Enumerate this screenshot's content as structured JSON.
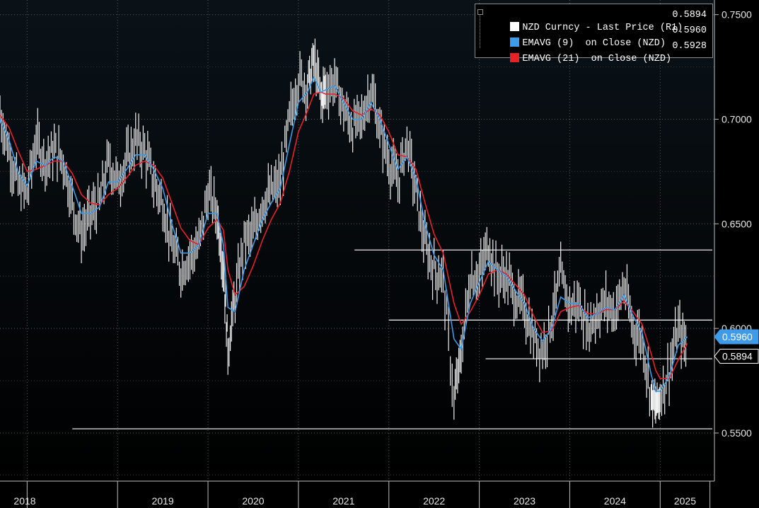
{
  "legend": {
    "items": [
      {
        "label": "NZD Curncy - Last Price (R1)",
        "value": "0.5894",
        "color": "#ffffff"
      },
      {
        "label": "EMAVG (9)  on Close (NZD)",
        "value": "0.5960",
        "color": "#3f9ae8"
      },
      {
        "label": "EMAVG (21)  on Close (NZD)",
        "value": "0.5928",
        "color": "#e8202a"
      }
    ]
  },
  "chart_data": {
    "type": "line",
    "title": "",
    "xlabel": "",
    "ylabel": "",
    "x_ticks": [
      "2018",
      "2019",
      "2020",
      "2021",
      "2022",
      "2023",
      "2024",
      "2025"
    ],
    "y_ticks": [
      "0.7500",
      "0.7000",
      "0.6500",
      "0.6000",
      "0.5500"
    ],
    "ylim": [
      0.527,
      0.757
    ],
    "xlim": [
      2017.7,
      2025.6
    ],
    "grid": true,
    "last_labels": [
      {
        "text": "0.5960",
        "color": "#3f9ae8"
      },
      {
        "text": "0.5894",
        "color": "#ffffff"
      }
    ],
    "horizontal_lines": [
      {
        "y": 0.6375,
        "x_start": 2021.62,
        "x_end": 2025.6
      },
      {
        "y": 0.604,
        "x_start": 2022.0,
        "x_end": 2025.6
      },
      {
        "y": 0.5855,
        "x_start": 2023.07,
        "x_end": 2025.6
      },
      {
        "y": 0.552,
        "x_start": 2018.5,
        "x_end": 2025.6
      }
    ],
    "series": [
      {
        "name": "NZD Curncy - Last Price (R1)",
        "color": "#ffffff",
        "x": [
          2017.7,
          2017.8,
          2017.9,
          2018.0,
          2018.1,
          2018.2,
          2018.3,
          2018.4,
          2018.5,
          2018.6,
          2018.7,
          2018.8,
          2018.9,
          2019.0,
          2019.1,
          2019.2,
          2019.3,
          2019.4,
          2019.5,
          2019.6,
          2019.7,
          2019.8,
          2019.9,
          2020.0,
          2020.1,
          2020.17,
          2020.22,
          2020.3,
          2020.4,
          2020.5,
          2020.6,
          2020.7,
          2020.8,
          2020.9,
          2021.0,
          2021.1,
          2021.17,
          2021.25,
          2021.3,
          2021.4,
          2021.5,
          2021.6,
          2021.7,
          2021.8,
          2021.9,
          2022.0,
          2022.1,
          2022.2,
          2022.3,
          2022.4,
          2022.5,
          2022.6,
          2022.72,
          2022.8,
          2022.9,
          2023.0,
          2023.1,
          2023.2,
          2023.3,
          2023.4,
          2023.5,
          2023.6,
          2023.7,
          2023.8,
          2023.9,
          2024.0,
          2024.1,
          2024.2,
          2024.3,
          2024.4,
          2024.5,
          2024.6,
          2024.7,
          2024.8,
          2024.9,
          2024.95,
          2025.0,
          2025.1,
          2025.2,
          2025.3
        ],
        "y": [
          0.703,
          0.685,
          0.668,
          0.665,
          0.69,
          0.68,
          0.685,
          0.68,
          0.66,
          0.645,
          0.655,
          0.66,
          0.68,
          0.67,
          0.68,
          0.69,
          0.685,
          0.67,
          0.66,
          0.64,
          0.628,
          0.635,
          0.64,
          0.665,
          0.655,
          0.63,
          0.59,
          0.615,
          0.642,
          0.645,
          0.66,
          0.665,
          0.67,
          0.7,
          0.72,
          0.716,
          0.728,
          0.71,
          0.715,
          0.718,
          0.705,
          0.696,
          0.7,
          0.715,
          0.695,
          0.68,
          0.67,
          0.69,
          0.665,
          0.64,
          0.628,
          0.625,
          0.565,
          0.588,
          0.625,
          0.625,
          0.64,
          0.625,
          0.625,
          0.615,
          0.61,
          0.595,
          0.59,
          0.605,
          0.625,
          0.61,
          0.612,
          0.6,
          0.608,
          0.612,
          0.608,
          0.62,
          0.6,
          0.595,
          0.568,
          0.562,
          0.568,
          0.58,
          0.6,
          0.5894
        ]
      },
      {
        "name": "EMAVG (9)  on Close (NZD)",
        "color": "#3f9ae8",
        "x": [
          2017.7,
          2017.8,
          2017.9,
          2018.0,
          2018.1,
          2018.2,
          2018.3,
          2018.4,
          2018.5,
          2018.6,
          2018.7,
          2018.8,
          2018.9,
          2019.0,
          2019.1,
          2019.2,
          2019.3,
          2019.4,
          2019.5,
          2019.6,
          2019.7,
          2019.8,
          2019.9,
          2020.0,
          2020.1,
          2020.17,
          2020.22,
          2020.3,
          2020.4,
          2020.5,
          2020.6,
          2020.7,
          2020.8,
          2020.9,
          2021.0,
          2021.1,
          2021.17,
          2021.25,
          2021.3,
          2021.4,
          2021.5,
          2021.6,
          2021.7,
          2021.8,
          2021.9,
          2022.0,
          2022.1,
          2022.2,
          2022.3,
          2022.4,
          2022.5,
          2022.6,
          2022.72,
          2022.8,
          2022.9,
          2023.0,
          2023.1,
          2023.2,
          2023.3,
          2023.4,
          2023.5,
          2023.6,
          2023.7,
          2023.8,
          2023.9,
          2024.0,
          2024.1,
          2024.2,
          2024.3,
          2024.4,
          2024.5,
          2024.6,
          2024.7,
          2024.8,
          2024.9,
          2024.95,
          2025.0,
          2025.1,
          2025.2,
          2025.3
        ],
        "y": [
          0.7,
          0.69,
          0.675,
          0.668,
          0.68,
          0.678,
          0.682,
          0.68,
          0.668,
          0.655,
          0.655,
          0.658,
          0.67,
          0.67,
          0.676,
          0.683,
          0.683,
          0.676,
          0.667,
          0.65,
          0.636,
          0.636,
          0.64,
          0.655,
          0.655,
          0.64,
          0.61,
          0.608,
          0.628,
          0.64,
          0.652,
          0.66,
          0.667,
          0.688,
          0.708,
          0.713,
          0.72,
          0.713,
          0.714,
          0.716,
          0.708,
          0.7,
          0.7,
          0.708,
          0.7,
          0.688,
          0.676,
          0.682,
          0.672,
          0.65,
          0.635,
          0.628,
          0.595,
          0.59,
          0.612,
          0.622,
          0.632,
          0.628,
          0.625,
          0.618,
          0.612,
          0.6,
          0.594,
          0.6,
          0.615,
          0.612,
          0.612,
          0.605,
          0.607,
          0.61,
          0.609,
          0.616,
          0.606,
          0.598,
          0.578,
          0.57,
          0.57,
          0.577,
          0.592,
          0.596
        ]
      },
      {
        "name": "EMAVG (21)  on Close (NZD)",
        "color": "#e8202a",
        "x": [
          2017.7,
          2017.8,
          2017.9,
          2018.0,
          2018.1,
          2018.2,
          2018.3,
          2018.4,
          2018.5,
          2018.6,
          2018.7,
          2018.8,
          2018.9,
          2019.0,
          2019.1,
          2019.2,
          2019.3,
          2019.4,
          2019.5,
          2019.6,
          2019.7,
          2019.8,
          2019.9,
          2020.0,
          2020.1,
          2020.17,
          2020.22,
          2020.3,
          2020.4,
          2020.5,
          2020.6,
          2020.7,
          2020.8,
          2020.9,
          2021.0,
          2021.1,
          2021.17,
          2021.25,
          2021.3,
          2021.4,
          2021.5,
          2021.6,
          2021.7,
          2021.8,
          2021.9,
          2022.0,
          2022.1,
          2022.2,
          2022.3,
          2022.4,
          2022.5,
          2022.6,
          2022.72,
          2022.8,
          2022.9,
          2023.0,
          2023.1,
          2023.2,
          2023.3,
          2023.4,
          2023.5,
          2023.6,
          2023.7,
          2023.8,
          2023.9,
          2024.0,
          2024.1,
          2024.2,
          2024.3,
          2024.4,
          2024.5,
          2024.6,
          2024.7,
          2024.8,
          2024.9,
          2024.95,
          2025.0,
          2025.1,
          2025.2,
          2025.3
        ],
        "y": [
          0.702,
          0.696,
          0.685,
          0.675,
          0.676,
          0.678,
          0.68,
          0.68,
          0.674,
          0.664,
          0.66,
          0.659,
          0.664,
          0.667,
          0.672,
          0.678,
          0.68,
          0.678,
          0.672,
          0.66,
          0.648,
          0.642,
          0.64,
          0.648,
          0.652,
          0.647,
          0.628,
          0.616,
          0.62,
          0.63,
          0.642,
          0.652,
          0.66,
          0.675,
          0.694,
          0.704,
          0.712,
          0.713,
          0.712,
          0.712,
          0.71,
          0.704,
          0.702,
          0.705,
          0.702,
          0.694,
          0.683,
          0.682,
          0.676,
          0.66,
          0.645,
          0.636,
          0.612,
          0.602,
          0.608,
          0.616,
          0.626,
          0.628,
          0.626,
          0.621,
          0.616,
          0.606,
          0.598,
          0.599,
          0.608,
          0.61,
          0.611,
          0.607,
          0.607,
          0.609,
          0.609,
          0.613,
          0.608,
          0.602,
          0.588,
          0.58,
          0.576,
          0.576,
          0.585,
          0.5928
        ]
      }
    ]
  }
}
